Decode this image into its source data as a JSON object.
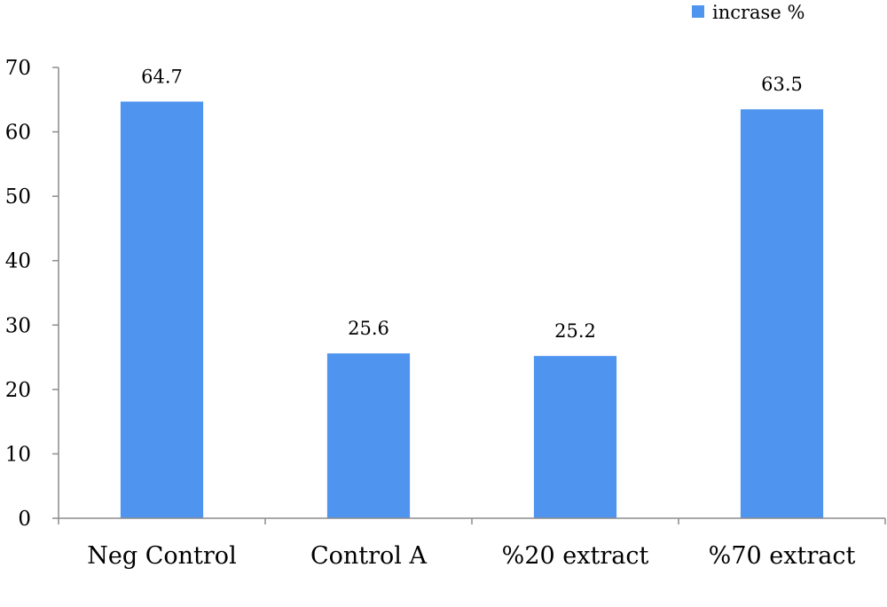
{
  "chart_data": {
    "type": "bar",
    "categories": [
      "Neg Control",
      "Control A",
      "%20 extract",
      "%70 extract"
    ],
    "series": [
      {
        "name": "incrase %",
        "values": [
          64.7,
          25.6,
          25.2,
          63.5
        ],
        "color": "#4f94ef"
      }
    ],
    "data_labels": [
      "64.7",
      "25.6",
      "25.2",
      "63.5"
    ],
    "y_ticks": [
      "0",
      "10",
      "20",
      "30",
      "40",
      "50",
      "60",
      "70"
    ],
    "ylim": [
      0,
      70
    ],
    "grid": false,
    "legend_position": "top-right",
    "axis_color": "#8c8c8c"
  }
}
